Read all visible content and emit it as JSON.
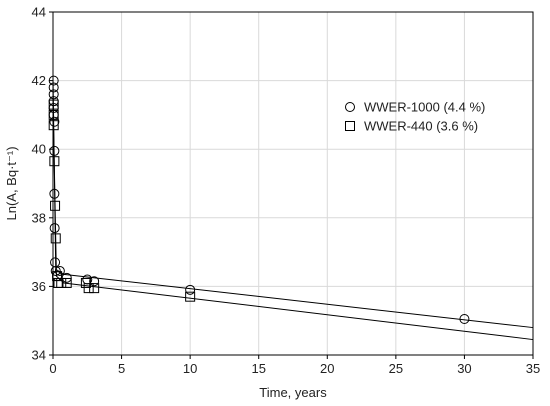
{
  "chart_data": {
    "type": "scatter",
    "xlabel": "Time, years",
    "ylabel": "Ln(A, Bq·t⁻¹)",
    "xlim": [
      0,
      35
    ],
    "ylim": [
      34,
      44
    ],
    "xticks": [
      0,
      5,
      10,
      15,
      20,
      25,
      30,
      35
    ],
    "yticks": [
      34,
      36,
      38,
      40,
      42,
      44
    ],
    "grid": true,
    "legend_position": "top-right",
    "series": [
      {
        "name": "WWER-1000 (4.4 %)",
        "marker": "circle",
        "points": [
          [
            0.05,
            42.0
          ],
          [
            0.05,
            41.8
          ],
          [
            0.05,
            41.6
          ],
          [
            0.05,
            41.4
          ],
          [
            0.05,
            41.2
          ],
          [
            0.05,
            41.0
          ],
          [
            0.1,
            40.8
          ],
          [
            0.1,
            39.95
          ],
          [
            0.1,
            38.7
          ],
          [
            0.12,
            37.7
          ],
          [
            0.15,
            36.7
          ],
          [
            0.2,
            36.45
          ],
          [
            0.3,
            36.3
          ],
          [
            0.5,
            36.45
          ],
          [
            1.0,
            36.25
          ],
          [
            2.5,
            36.2
          ],
          [
            3.0,
            36.15
          ],
          [
            10.0,
            35.9
          ],
          [
            30.0,
            35.05
          ]
        ],
        "fit_line": [
          [
            0,
            42.1
          ],
          [
            0.2,
            36.5
          ],
          [
            0.8,
            36.35
          ],
          [
            35,
            34.8
          ]
        ]
      },
      {
        "name": "WWER-440 (3.6 %)",
        "marker": "square",
        "points": [
          [
            0.05,
            41.3
          ],
          [
            0.05,
            41.0
          ],
          [
            0.05,
            40.7
          ],
          [
            0.1,
            39.65
          ],
          [
            0.15,
            38.35
          ],
          [
            0.2,
            37.4
          ],
          [
            0.3,
            36.3
          ],
          [
            0.4,
            36.1
          ],
          [
            0.6,
            36.1
          ],
          [
            1.0,
            36.1
          ],
          [
            2.4,
            36.1
          ],
          [
            2.6,
            35.95
          ],
          [
            3.0,
            35.95
          ],
          [
            10.0,
            35.7
          ]
        ],
        "fit_line": [
          [
            0,
            41.5
          ],
          [
            0.25,
            36.3
          ],
          [
            0.8,
            36.1
          ],
          [
            35,
            34.45
          ]
        ]
      }
    ]
  }
}
